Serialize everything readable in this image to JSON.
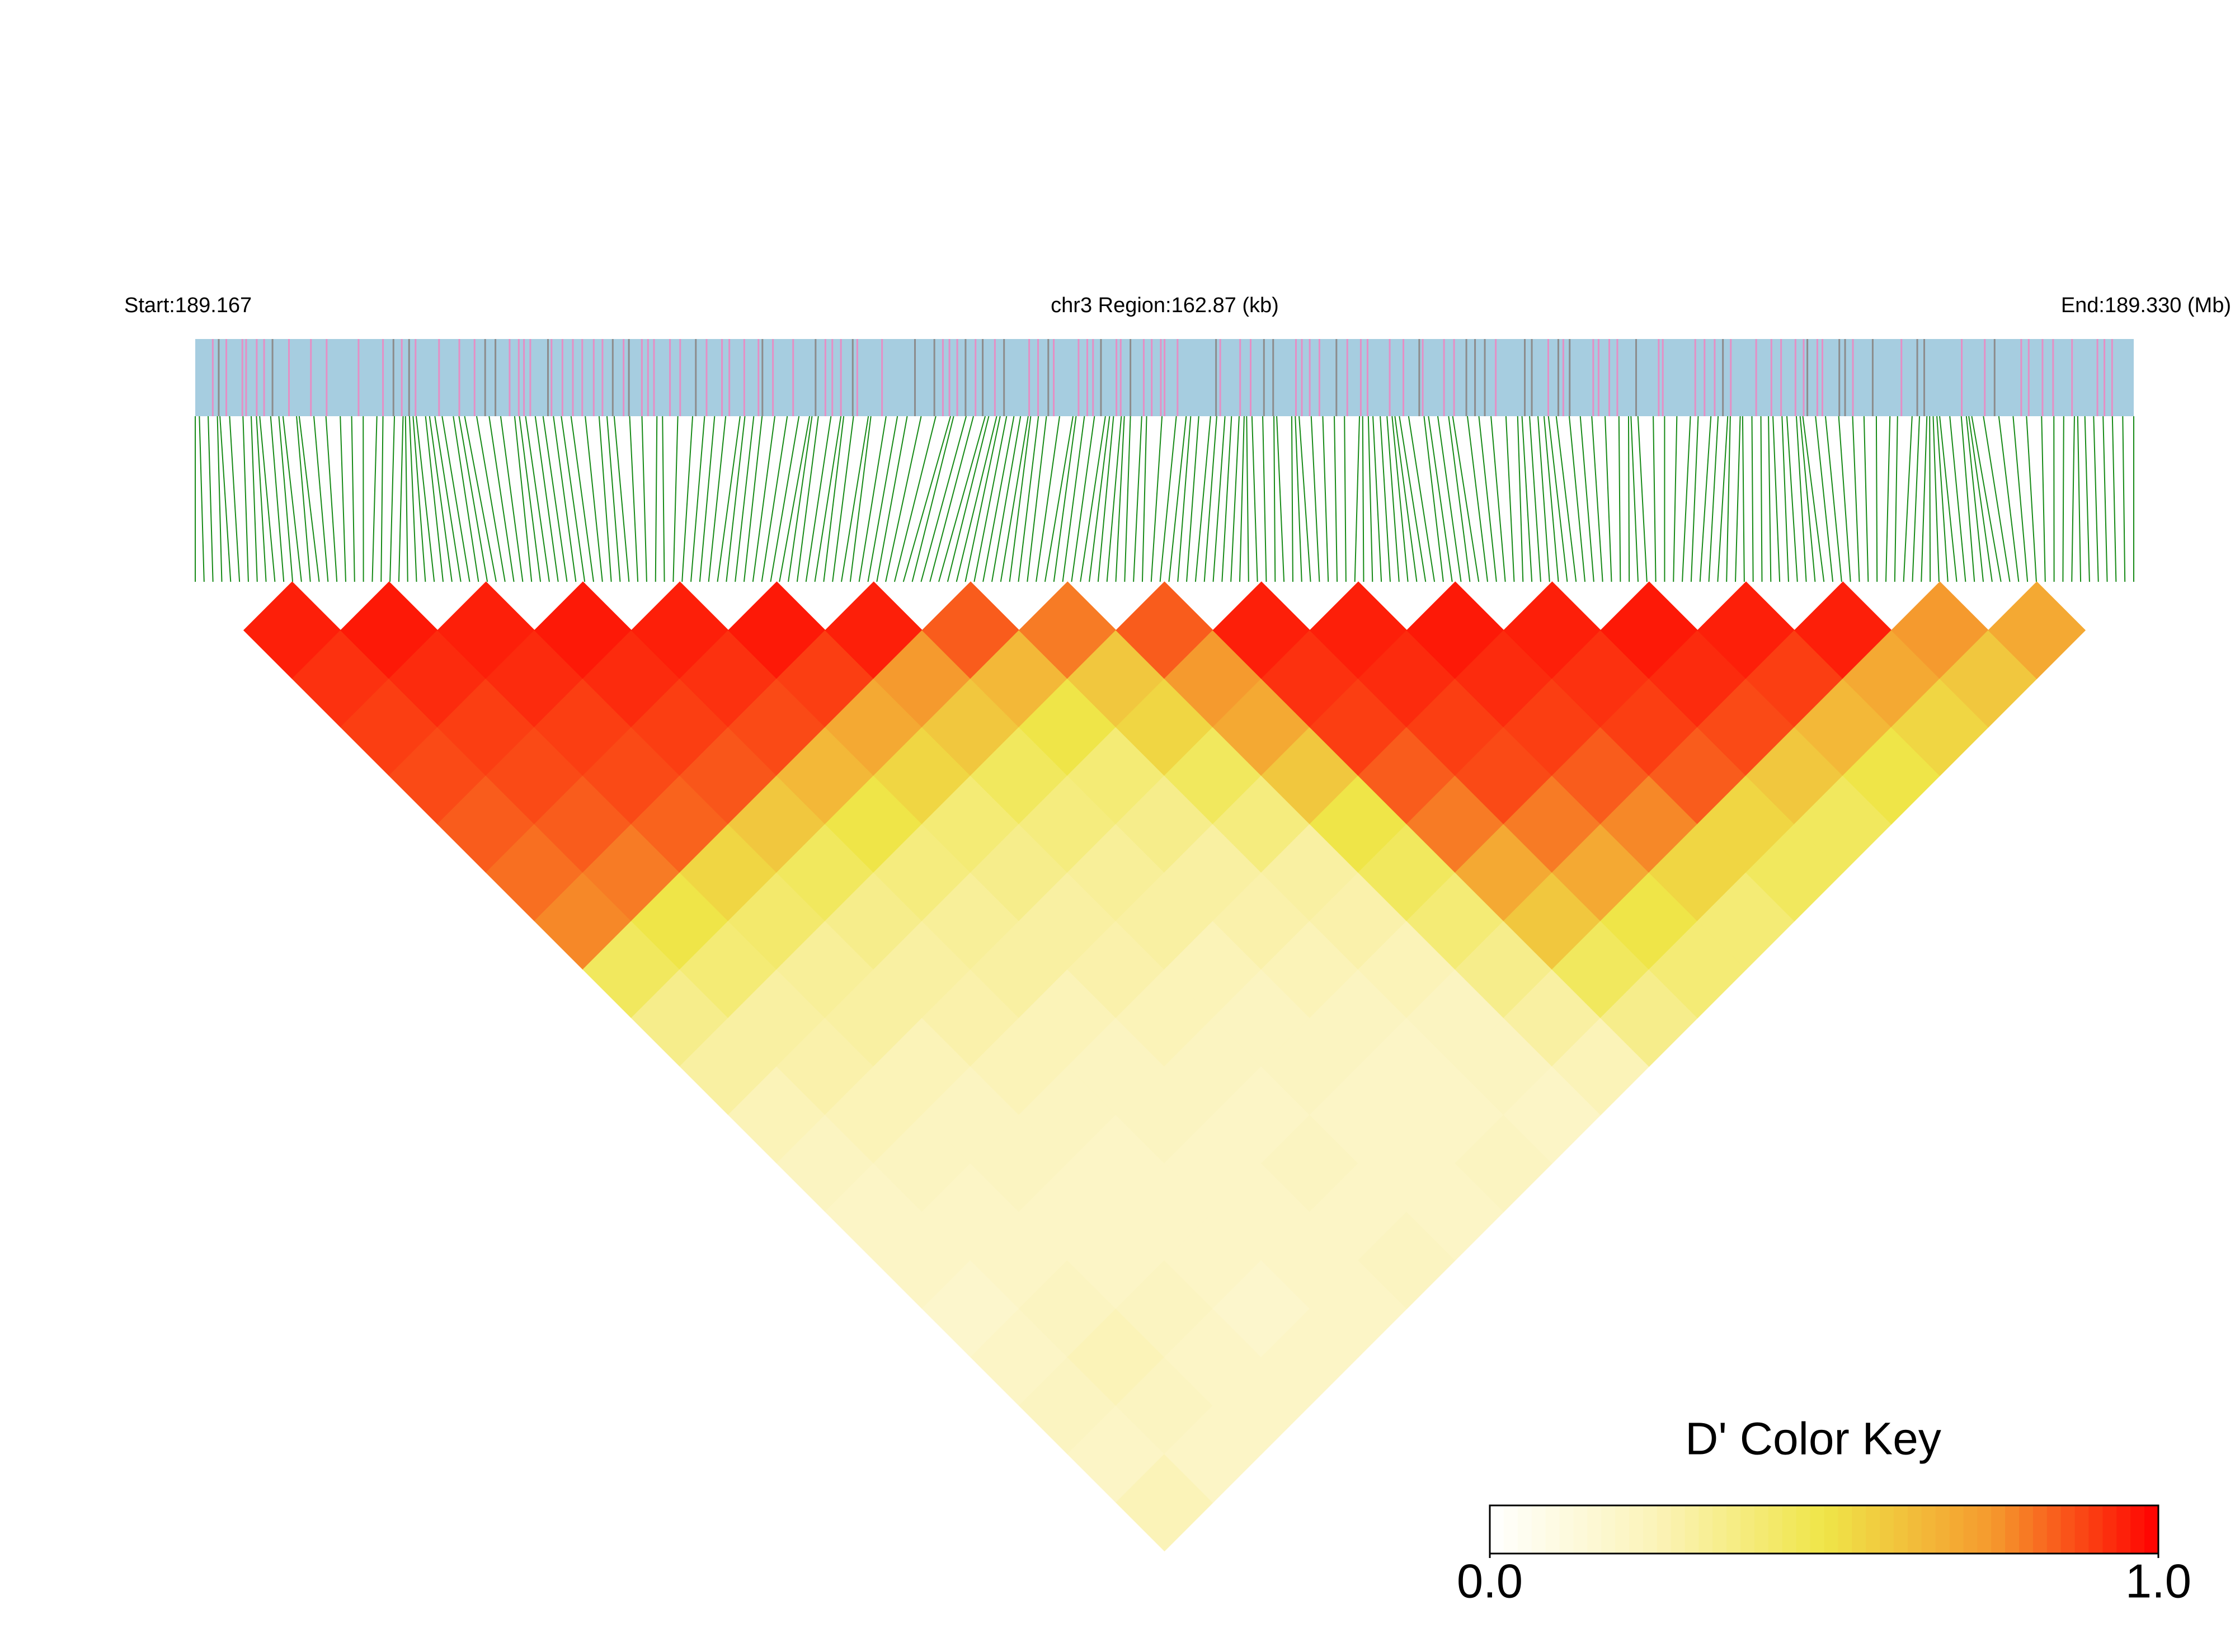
{
  "chart_data": {
    "type": "ld-heatmap",
    "start_label": "Start:189.167",
    "region_label": "chr3 Region:162.87 (kb)",
    "end_label": "End:189.330 (Mb)",
    "d_prime": [
      [
        0.95,
        0.92,
        0.9,
        0.88,
        0.85,
        0.82,
        0.78,
        0.45,
        0.35,
        0.3,
        0.25,
        0.22,
        0.2,
        0.2,
        0.18,
        0.2,
        0.22,
        0.2,
        0.25
      ],
      [
        0.96,
        0.93,
        0.9,
        0.88,
        0.85,
        0.8,
        0.5,
        0.4,
        0.3,
        0.28,
        0.25,
        0.22,
        0.2,
        0.2,
        0.22,
        0.25,
        0.22,
        0.2
      ],
      [
        0.95,
        0.93,
        0.9,
        0.88,
        0.84,
        0.55,
        0.42,
        0.32,
        0.3,
        0.25,
        0.22,
        0.22,
        0.2,
        0.2,
        0.22,
        0.2,
        0.2
      ],
      [
        0.96,
        0.93,
        0.9,
        0.86,
        0.6,
        0.45,
        0.35,
        0.3,
        0.28,
        0.25,
        0.22,
        0.2,
        0.2,
        0.2,
        0.18,
        0.2
      ],
      [
        0.95,
        0.92,
        0.88,
        0.65,
        0.5,
        0.38,
        0.32,
        0.3,
        0.25,
        0.22,
        0.22,
        0.2,
        0.2,
        0.2,
        0.2
      ],
      [
        0.96,
        0.9,
        0.7,
        0.55,
        0.4,
        0.35,
        0.3,
        0.28,
        0.25,
        0.22,
        0.2,
        0.22,
        0.2,
        0.22
      ],
      [
        0.95,
        0.75,
        0.6,
        0.45,
        0.38,
        0.32,
        0.3,
        0.25,
        0.22,
        0.22,
        0.2,
        0.2,
        0.2
      ],
      [
        0.85,
        0.65,
        0.5,
        0.4,
        0.35,
        0.3,
        0.28,
        0.25,
        0.22,
        0.2,
        0.2,
        0.22
      ],
      [
        0.8,
        0.6,
        0.55,
        0.45,
        0.38,
        0.3,
        0.28,
        0.25,
        0.22,
        0.22,
        0.2
      ],
      [
        0.85,
        0.75,
        0.7,
        0.6,
        0.5,
        0.45,
        0.4,
        0.35,
        0.3,
        0.25
      ],
      [
        0.95,
        0.92,
        0.9,
        0.85,
        0.8,
        0.7,
        0.6,
        0.45,
        0.35
      ],
      [
        0.95,
        0.93,
        0.9,
        0.88,
        0.8,
        0.7,
        0.5,
        0.4
      ],
      [
        0.96,
        0.93,
        0.9,
        0.85,
        0.78,
        0.55,
        0.4
      ],
      [
        0.95,
        0.92,
        0.9,
        0.85,
        0.55,
        0.45
      ],
      [
        0.96,
        0.93,
        0.88,
        0.6,
        0.45
      ],
      [
        0.95,
        0.9,
        0.65,
        0.5
      ],
      [
        0.95,
        0.7,
        0.55
      ],
      [
        0.75,
        0.6
      ],
      [
        0.7
      ]
    ],
    "color_key": {
      "title": "D' Color Key",
      "lim": [
        0,
        1
      ],
      "ticks": [
        {
          "value": 0,
          "label": "0.0"
        },
        {
          "value": 1,
          "label": "1.0"
        }
      ],
      "colors": [
        "#ffffff",
        "#fbf3b8",
        "#efe548",
        "#f59a2e",
        "#ff0000"
      ]
    },
    "track_color": "#a6cde0",
    "stripe_colors": [
      "#e58fc5",
      "#8c8c8c"
    ],
    "connector_color": "#168a16"
  }
}
